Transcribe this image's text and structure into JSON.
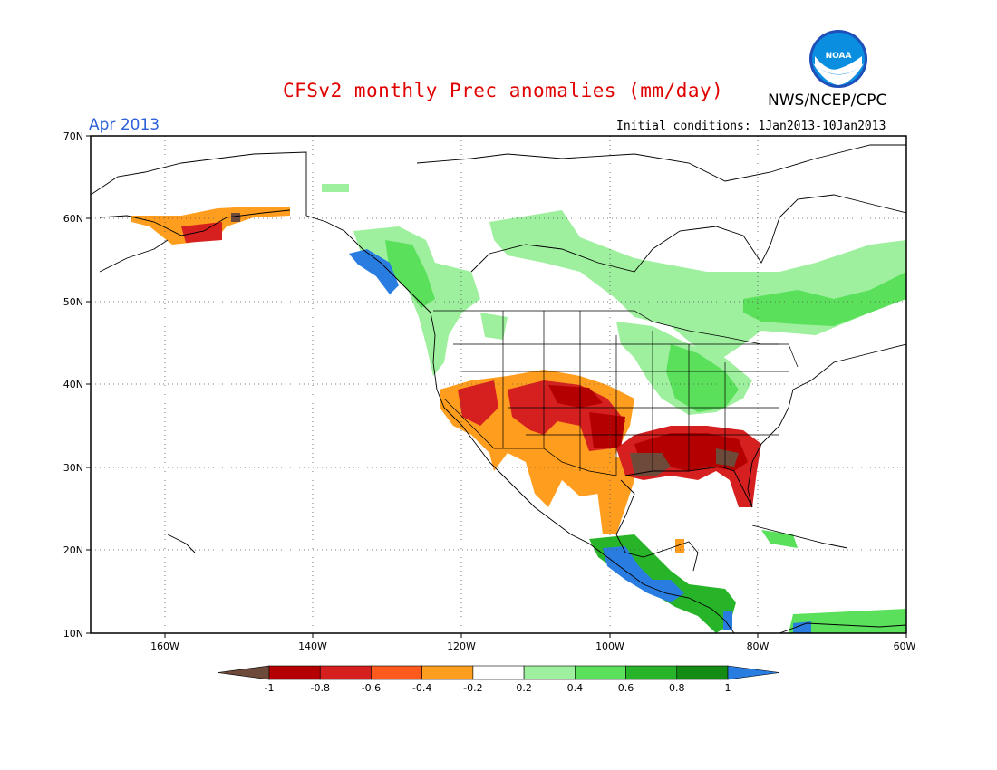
{
  "title": "CFSv2 monthly Prec anomalies (mm/day)",
  "org": "NWS/NCEP/CPC",
  "logo_text": "NOAA",
  "month": "Apr 2013",
  "initial_conditions": "Initial conditions: 1Jan2013-10Jan2013",
  "lat_labels": [
    "70N",
    "60N",
    "50N",
    "40N",
    "30N",
    "20N",
    "10N"
  ],
  "lon_labels": [
    "160W",
    "140W",
    "120W",
    "100W",
    "80W",
    "60W"
  ],
  "colorbar": {
    "labels": [
      "-1",
      "-0.8",
      "-0.6",
      "-0.4",
      "-0.2",
      "0.2",
      "0.4",
      "0.6",
      "0.8",
      "1"
    ],
    "colors": [
      "#6e4a3a",
      "#b40000",
      "#d62020",
      "#ff5a1e",
      "#ff9e1e",
      "#ffffff",
      "#9ef09e",
      "#5ae05a",
      "#28b428",
      "#148c14",
      "#2a7de0"
    ]
  },
  "anomaly_regions": [
    {
      "category": "positive",
      "color": "#9ef09e",
      "area": "Canada, Hudson Bay region"
    },
    {
      "category": "positive",
      "color": "#5ae05a",
      "area": "Eastern Canada, Great Lakes, Ohio Valley"
    },
    {
      "category": "positive",
      "color": "#2a7de0",
      "area": "British Columbia coast"
    },
    {
      "category": "positive",
      "color": "#2a7de0",
      "area": "Southern Mexico and Central America"
    },
    {
      "category": "negative",
      "color": "#ff9e1e",
      "area": "Southwestern US and southern Plains"
    },
    {
      "category": "negative",
      "color": "#b40000",
      "area": "Gulf Coast states and Florida"
    },
    {
      "category": "negative",
      "color": "#6e4a3a",
      "area": "Louisiana coast"
    },
    {
      "category": "negative",
      "color": "#d62020",
      "area": "Southern Alaska coast"
    }
  ]
}
